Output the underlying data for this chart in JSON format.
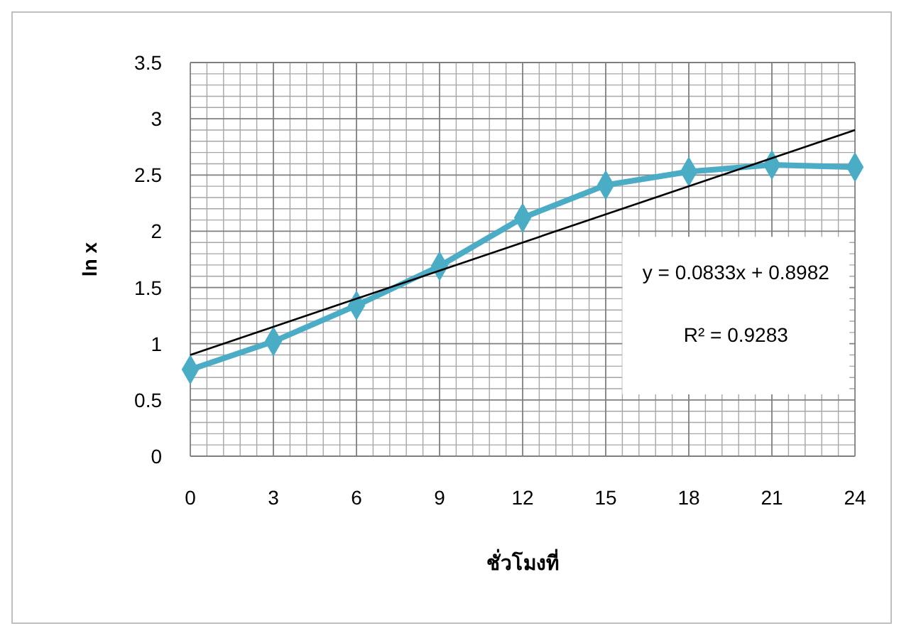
{
  "chart_data": {
    "type": "line",
    "xlabel": "ชั่วโมงที่",
    "ylabel": "ln x",
    "x": [
      0,
      3,
      6,
      9,
      12,
      15,
      18,
      21,
      24
    ],
    "series": [
      {
        "color": "#4bacc6",
        "values": [
          0.77,
          1.02,
          1.34,
          1.69,
          2.12,
          2.41,
          2.53,
          2.59,
          2.57
        ],
        "marker": "diamond"
      },
      {
        "type": "line",
        "color": "#000000",
        "x": [
          0,
          24
        ],
        "values": [
          0.9,
          2.9
        ],
        "marker": "none"
      }
    ],
    "xlim": [
      0,
      24
    ],
    "xticks": [
      0,
      3,
      6,
      9,
      12,
      15,
      18,
      21,
      24
    ],
    "ylim": [
      0,
      3.5
    ],
    "yticks": [
      0,
      0.5,
      1,
      1.5,
      2,
      2.5,
      3,
      3.5
    ],
    "grid": true,
    "annotations": [
      "y = 0.0833x + 0.8982",
      "R² = 0.9283"
    ]
  }
}
